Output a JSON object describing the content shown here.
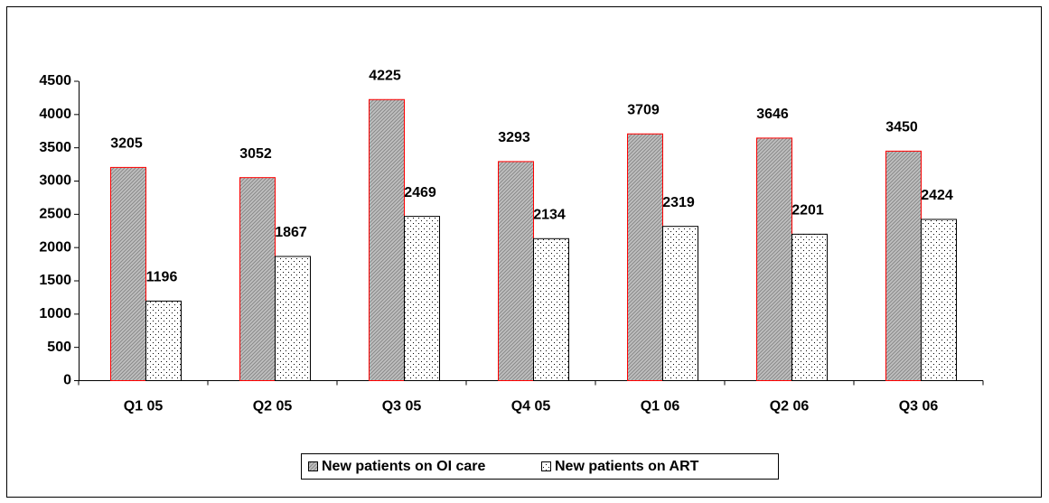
{
  "chart_data": {
    "type": "bar",
    "categories": [
      "Q1 05",
      "Q2 05",
      "Q3 05",
      "Q4 05",
      "Q1 06",
      "Q2 06",
      "Q3 06"
    ],
    "series": [
      {
        "name": "New patients on OI care",
        "color": "#c0c0c0",
        "values": [
          3205,
          3052,
          4225,
          3293,
          3709,
          3646,
          3450
        ]
      },
      {
        "name": "New patients on ART",
        "color": "#ffffff",
        "values": [
          1196,
          1867,
          2469,
          2134,
          2319,
          2201,
          2424
        ]
      }
    ],
    "ylim": [
      0,
      4500
    ],
    "yticks": [
      0,
      500,
      1000,
      1500,
      2000,
      2500,
      3000,
      3500,
      4000,
      4500
    ],
    "grid": false,
    "legend": "bottom"
  }
}
